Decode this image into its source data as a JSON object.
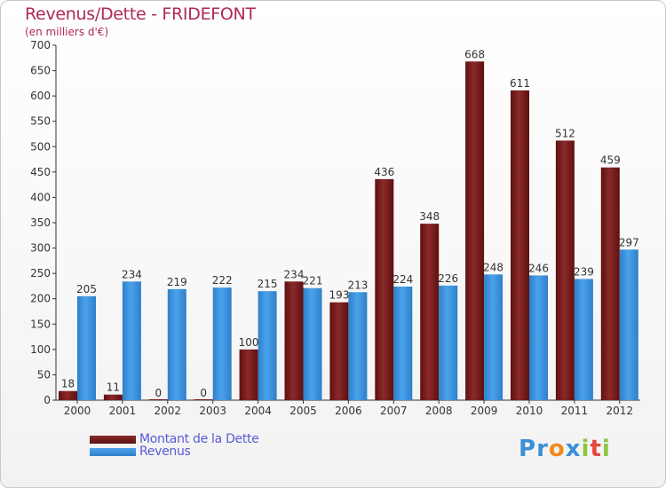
{
  "header": {
    "title": "Revenus/Dette - FRIDEFONT",
    "subtitle": "(en milliers d'€)"
  },
  "legend": {
    "debt_label": "Montant de la Dette",
    "revenue_label": "Revenus"
  },
  "logo": {
    "letters": [
      "P",
      "r",
      "o",
      "x",
      "i",
      "t",
      "i"
    ],
    "colors": [
      "#3a8fd8",
      "#3a8fd8",
      "#f08a1e",
      "#3a8fd8",
      "#8cc63f",
      "#e8463a",
      "#8cc63f"
    ]
  },
  "colors": {
    "debt": "#7a1c1c",
    "revenue": "#3d8fd8",
    "axis": "#333333"
  },
  "chart_data": {
    "type": "bar",
    "title": "Revenus/Dette - FRIDEFONT",
    "subtitle": "(en milliers d'€)",
    "categories": [
      "2000",
      "2001",
      "2002",
      "2003",
      "2004",
      "2005",
      "2006",
      "2007",
      "2008",
      "2009",
      "2010",
      "2011",
      "2012"
    ],
    "series": [
      {
        "name": "Montant de la Dette",
        "values": [
          18,
          11,
          0,
          0,
          100,
          234,
          193,
          436,
          348,
          668,
          611,
          512,
          459
        ]
      },
      {
        "name": "Revenus",
        "values": [
          205,
          234,
          219,
          222,
          215,
          221,
          213,
          224,
          226,
          248,
          246,
          239,
          297
        ]
      }
    ],
    "ylim": [
      0,
      700
    ],
    "yticks": [
      0,
      50,
      100,
      150,
      200,
      250,
      300,
      350,
      400,
      450,
      500,
      550,
      600,
      650,
      700
    ],
    "grid": false,
    "legend_position": "bottom-left"
  }
}
